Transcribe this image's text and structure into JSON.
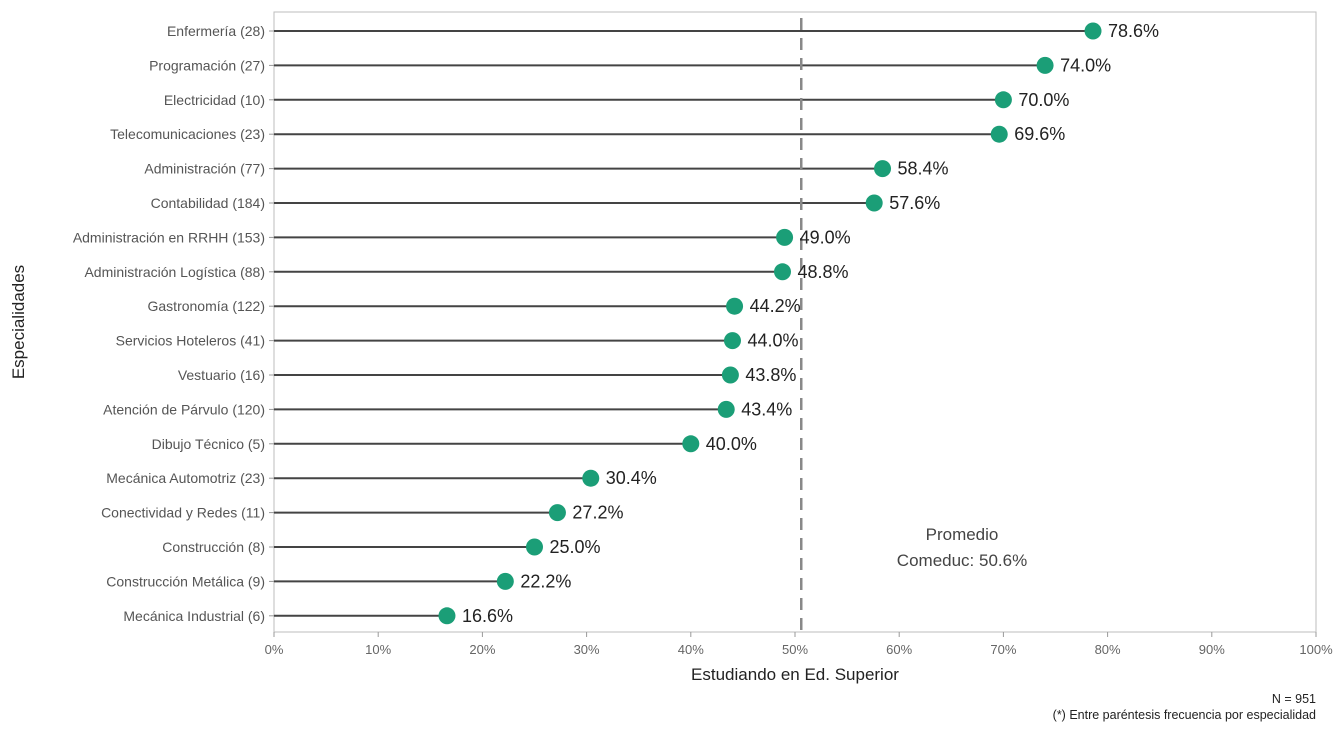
{
  "chart_data": {
    "type": "lollipop",
    "orientation": "horizontal",
    "xlabel": "Estudiando en Ed. Superior",
    "ylabel": "Especialidades",
    "xlim": [
      0,
      100
    ],
    "x_ticks": [
      "0%",
      "10%",
      "20%",
      "30%",
      "40%",
      "50%",
      "60%",
      "70%",
      "80%",
      "90%",
      "100%"
    ],
    "x_tick_values": [
      0,
      10,
      20,
      30,
      40,
      50,
      60,
      70,
      80,
      90,
      100
    ],
    "grid": false,
    "point_color": "#1b9e77",
    "categories": [
      "Enfermería (28)",
      "Programación (27)",
      "Electricidad (10)",
      "Telecomunicaciones (23)",
      "Administración (77)",
      "Contabilidad (184)",
      "Administración en RRHH (153)",
      "Administración Logística (88)",
      "Gastronomía (122)",
      "Servicios Hoteleros (41)",
      "Vestuario (16)",
      "Atención de Párvulo (120)",
      "Dibujo Técnico (5)",
      "Mecánica Automotriz (23)",
      "Conectividad y Redes (11)",
      "Construcción (8)",
      "Construcción Metálica (9)",
      "Mecánica Industrial (6)"
    ],
    "values": [
      78.6,
      74.0,
      70.0,
      69.6,
      58.4,
      57.6,
      49.0,
      48.8,
      44.2,
      44.0,
      43.8,
      43.4,
      40.0,
      30.4,
      27.2,
      25.0,
      22.2,
      16.6
    ],
    "value_labels": [
      "78.6%",
      "74.0%",
      "70.0%",
      "69.6%",
      "58.4%",
      "57.6%",
      "49.0%",
      "48.8%",
      "44.2%",
      "44.0%",
      "43.8%",
      "43.4%",
      "40.0%",
      "30.4%",
      "27.2%",
      "25.0%",
      "22.2%",
      "16.6%"
    ],
    "reference_line": {
      "value": 50.6,
      "style": "dashed",
      "label_line1": "Promedio",
      "label_line2": "Comeduc: 50.6%"
    }
  },
  "notes": {
    "n": "N = 951",
    "footnote": "(*) Entre paréntesis frecuencia por especialidad"
  }
}
